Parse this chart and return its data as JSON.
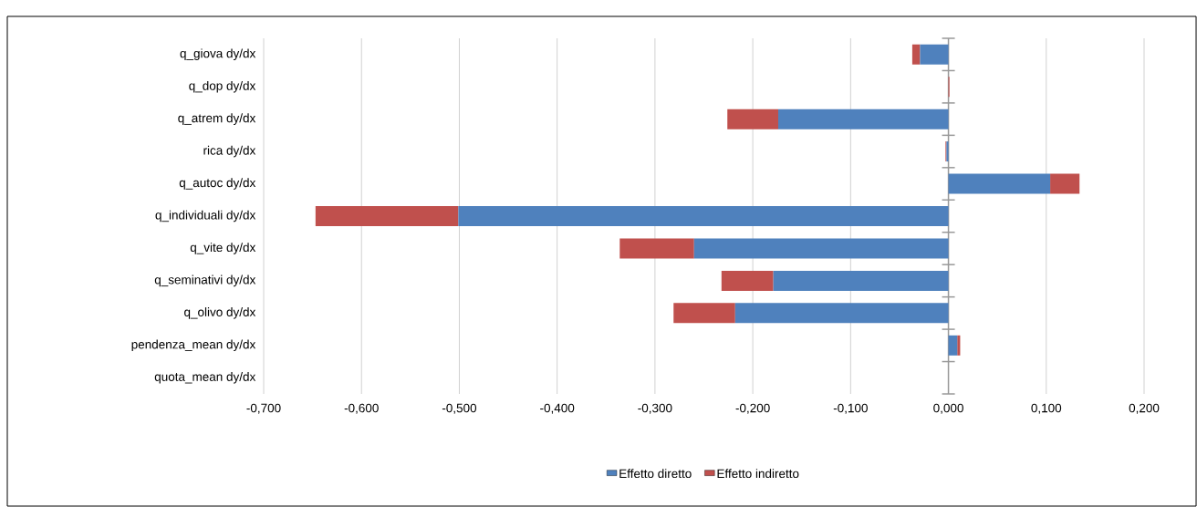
{
  "chart_data": {
    "type": "bar",
    "orientation": "horizontal",
    "stacked": true,
    "categories": [
      "q_giova dy/dx",
      "q_dop dy/dx",
      "q_atrem dy/dx",
      "rica dy/dx",
      "q_autoc dy/dx",
      "q_individuali dy/dx",
      "q_vite dy/dx",
      "q_seminativi dy/dx",
      "q_olivo dy/dx",
      "pendenza_mean dy/dx",
      "quota_mean dy/dx"
    ],
    "series": [
      {
        "name": "Effetto diretto",
        "color": "#4f81bd",
        "values": [
          -0.029,
          0,
          -0.174,
          -0.002,
          0.104,
          -0.501,
          -0.26,
          -0.179,
          -0.218,
          0.009,
          0
        ]
      },
      {
        "name": "Effetto indiretto",
        "color": "#c0504d",
        "values": [
          -0.008,
          0.001,
          -0.052,
          -0.001,
          0.03,
          -0.146,
          -0.076,
          -0.053,
          -0.063,
          0.003,
          0
        ]
      }
    ],
    "xlim": [
      -0.7,
      0.2
    ],
    "xticks": [
      {
        "value": -0.7,
        "label": "-0,700"
      },
      {
        "value": -0.6,
        "label": "-0,600"
      },
      {
        "value": -0.5,
        "label": "-0,500"
      },
      {
        "value": -0.4,
        "label": "-0,400"
      },
      {
        "value": -0.3,
        "label": "-0,300"
      },
      {
        "value": -0.2,
        "label": "-0,200"
      },
      {
        "value": -0.1,
        "label": "-0,100"
      },
      {
        "value": 0,
        "label": "0,000"
      },
      {
        "value": 0.1,
        "label": "0,100"
      },
      {
        "value": 0.2,
        "label": "0,200"
      }
    ],
    "grid": "x",
    "legend": "bottom"
  }
}
